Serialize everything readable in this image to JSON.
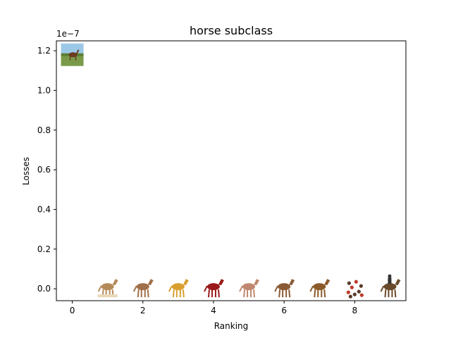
{
  "chart_data": {
    "type": "scatter",
    "title": "horse subclass",
    "xlabel": "Ranking",
    "ylabel": "Losses",
    "offset_text": "1e−7",
    "scale": 1e-07,
    "xlim": [
      -0.45,
      9.45
    ],
    "ylim": [
      -0.06,
      1.25
    ],
    "xticks": [
      0,
      2,
      4,
      6,
      8
    ],
    "xtick_labels": [
      "0",
      "2",
      "4",
      "6",
      "8"
    ],
    "yticks": [
      0.0,
      0.2,
      0.4,
      0.6,
      0.8,
      1.0,
      1.2
    ],
    "ytick_labels": [
      "0.0",
      "0.2",
      "0.4",
      "0.6",
      "0.8",
      "1.0",
      "1.2"
    ],
    "grid": false,
    "points": [
      {
        "x": 0,
        "y": 1.18,
        "icon": "horse-in-field-photo-icon",
        "color": "#7a9a4a"
      },
      {
        "x": 1,
        "y": 0.0,
        "icon": "lying-horse-sketch-icon",
        "color": "#b58a5a"
      },
      {
        "x": 2,
        "y": 0.0,
        "icon": "cartoon-pony-icon",
        "color": "#a0704a"
      },
      {
        "x": 3,
        "y": 0.0,
        "icon": "cartoon-yellow-horse-icon",
        "color": "#d9a030"
      },
      {
        "x": 4,
        "y": 0.0,
        "icon": "red-horse-icon",
        "color": "#9a1a1a"
      },
      {
        "x": 5,
        "y": 0.0,
        "icon": "cartoon-standing-horse-icon",
        "color": "#c08870"
      },
      {
        "x": 6,
        "y": 0.0,
        "icon": "cartoon-jumping-horse-icon",
        "color": "#8a5a35"
      },
      {
        "x": 7,
        "y": 0.0,
        "icon": "brown-horse-silhouette-icon",
        "color": "#8b5a2b"
      },
      {
        "x": 8,
        "y": 0.0,
        "icon": "spotted-horse-pattern-icon",
        "color": "#c03a2a"
      },
      {
        "x": 9,
        "y": 0.0,
        "icon": "horse-with-rider-icon",
        "color": "#6a4a2a"
      }
    ]
  }
}
